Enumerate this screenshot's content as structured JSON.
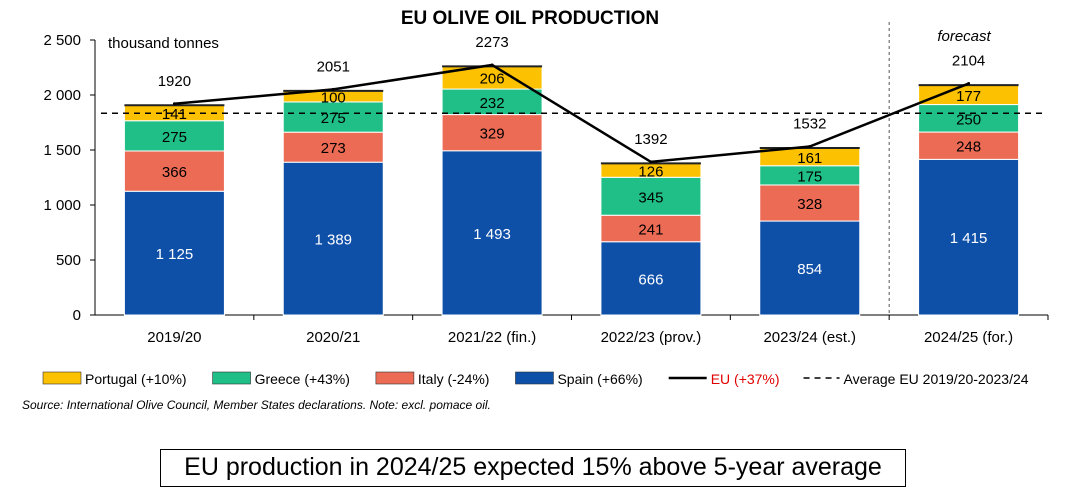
{
  "chart_data": {
    "type": "bar",
    "stacked": true,
    "title": "EU OLIVE OIL PRODUCTION",
    "unit_label": "thousand tonnes",
    "forecast_label": "forecast",
    "categories": [
      "2019/20",
      "2020/21",
      "2021/22 (fin.)",
      "2022/23 (prov.)",
      "2023/24 (est.)",
      "2024/25 (for.)"
    ],
    "series": [
      {
        "name": "Spain (+66%)",
        "color": "#0e4fa8",
        "label_color": "#ffffff",
        "values": [
          1125,
          1389,
          1493,
          666,
          854,
          1415
        ],
        "labels": [
          "1 125",
          "1 389",
          "1 493",
          "666",
          "854",
          "1 415"
        ]
      },
      {
        "name": "Italy (-24%)",
        "color": "#ec6b55",
        "label_color": "#000000",
        "values": [
          366,
          273,
          329,
          241,
          328,
          248
        ],
        "labels": [
          "366",
          "273",
          "329",
          "241",
          "328",
          "248"
        ]
      },
      {
        "name": "Greece (+43%)",
        "color": "#1fbf87",
        "label_color": "#000000",
        "values": [
          275,
          275,
          232,
          345,
          175,
          250
        ],
        "labels": [
          "275",
          "275",
          "232",
          "345",
          "175",
          "250"
        ]
      },
      {
        "name": "Portugal (+10%)",
        "color": "#fcc100",
        "label_color": "#000000",
        "values": [
          141,
          100,
          206,
          126,
          161,
          177
        ],
        "labels": [
          "141",
          "100",
          "206",
          "126",
          "161",
          "177"
        ]
      }
    ],
    "line": {
      "name": "EU (+37%)",
      "name_color": "#e00000",
      "values": [
        1920,
        2051,
        2273,
        1392,
        1532,
        2104
      ],
      "labels": [
        "1920",
        "2051",
        "2273",
        "1392",
        "1532",
        "2104"
      ]
    },
    "average": {
      "name": "Average EU 2019/20-2023/24",
      "value": 1834
    },
    "ylim": [
      0,
      2500
    ],
    "yticks": [
      0,
      500,
      1000,
      1500,
      2000,
      2500
    ],
    "ytick_labels": [
      "0",
      "500",
      "1 000",
      "1 500",
      "2 000",
      "2 500"
    ],
    "legend_order": [
      "Portugal (+10%)",
      "Greece (+43%)",
      "Italy (-24%)",
      "Spain (+66%)"
    ],
    "legend_position": "bottom"
  },
  "source_note": "Source: International Olive Council, Member States declarations. Note: excl. pomace oil.",
  "callout": "EU production in 2024/25 expected 15% above 5-year average"
}
